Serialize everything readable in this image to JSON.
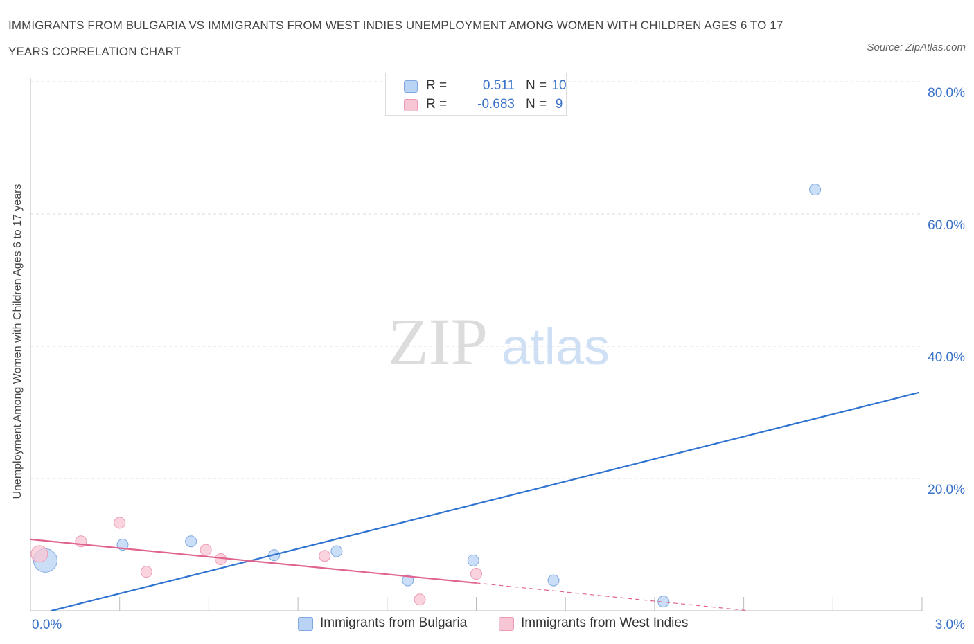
{
  "title": "IMMIGRANTS FROM BULGARIA VS IMMIGRANTS FROM WEST INDIES UNEMPLOYMENT AMONG WOMEN WITH CHILDREN AGES 6 TO 17 YEARS CORRELATION CHART",
  "source": "Source: ZipAtlas.com",
  "watermark": {
    "zip": "ZIP",
    "atlas": "atlas"
  },
  "colors": {
    "bulgaria_fill": "#b9d3f5",
    "bulgaria_stroke": "#7fa9e0",
    "bulgaria_line": "#2f73d0",
    "westindies_fill": "#f7c6d4",
    "westindies_stroke": "#ee9ab4",
    "westindies_line": "#e0648e",
    "axis_text": "#3a72c9",
    "grid": "#dddddd"
  },
  "legend": {
    "rows": [
      {
        "r_label": "R =",
        "r_value": "0.511",
        "n_label": "N =",
        "n_value": "10"
      },
      {
        "r_label": "R =",
        "r_value": "-0.683",
        "n_label": "N =",
        "n_value": "9"
      }
    ]
  },
  "chart_data": {
    "type": "scatter",
    "title": "IMMIGRANTS FROM BULGARIA VS IMMIGRANTS FROM WEST INDIES UNEMPLOYMENT AMONG WOMEN WITH CHILDREN AGES 6 TO 17 YEARS CORRELATION CHART",
    "xlabel": "",
    "ylabel": "Unemployment Among Women with Children Ages 6 to 17 years",
    "xlim": [
      0,
      3.0
    ],
    "ylim": [
      0,
      80
    ],
    "x_tick_labels": [
      "0.0%",
      "3.0%"
    ],
    "y_ticks": [
      20,
      40,
      60,
      80
    ],
    "y_tick_labels": [
      "20.0%",
      "40.0%",
      "60.0%",
      "80.0%"
    ],
    "grid": true,
    "series": [
      {
        "name": "Immigrants from Bulgaria",
        "R": 0.511,
        "N": 10,
        "points": [
          {
            "x": 0.05,
            "y": 7.6,
            "size": "large"
          },
          {
            "x": 0.31,
            "y": 10.0,
            "size": "small"
          },
          {
            "x": 0.54,
            "y": 10.5,
            "size": "small"
          },
          {
            "x": 0.82,
            "y": 8.4,
            "size": "small"
          },
          {
            "x": 1.03,
            "y": 9.0,
            "size": "small"
          },
          {
            "x": 1.27,
            "y": 4.6,
            "size": "small"
          },
          {
            "x": 1.49,
            "y": 7.6,
            "size": "small"
          },
          {
            "x": 1.76,
            "y": 4.6,
            "size": "small"
          },
          {
            "x": 2.13,
            "y": 1.4,
            "size": "small"
          },
          {
            "x": 2.64,
            "y": 63.7,
            "size": "small"
          }
        ],
        "trend": {
          "x": [
            0.07,
            2.99
          ],
          "y": [
            0.0,
            33.0
          ]
        }
      },
      {
        "name": "Immigrants from West Indies",
        "R": -0.683,
        "N": 9,
        "points": [
          {
            "x": 0.03,
            "y": 8.6,
            "size": "medium"
          },
          {
            "x": 0.17,
            "y": 10.5,
            "size": "small"
          },
          {
            "x": 0.3,
            "y": 13.3,
            "size": "small"
          },
          {
            "x": 0.39,
            "y": 5.9,
            "size": "small"
          },
          {
            "x": 0.59,
            "y": 9.2,
            "size": "small"
          },
          {
            "x": 0.64,
            "y": 7.8,
            "size": "small"
          },
          {
            "x": 0.99,
            "y": 8.3,
            "size": "small"
          },
          {
            "x": 1.31,
            "y": 1.7,
            "size": "small"
          },
          {
            "x": 1.5,
            "y": 5.6,
            "size": "small"
          }
        ],
        "trend": {
          "x": [
            0.0,
            1.5
          ],
          "y": [
            10.8,
            4.2
          ]
        },
        "trend_extension": {
          "x": [
            1.5,
            2.42
          ],
          "y": [
            4.2,
            0.0
          ]
        }
      }
    ]
  }
}
